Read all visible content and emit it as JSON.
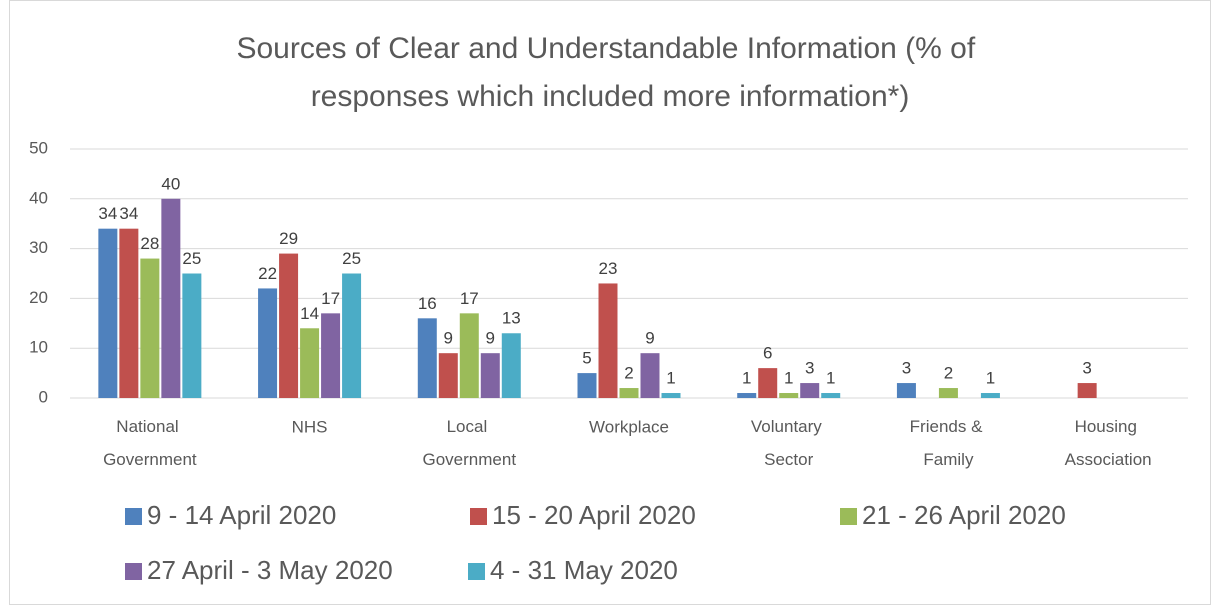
{
  "chart_data": {
    "type": "bar",
    "title": "Sources of Clear and Understandable Information (% of responses which included more information*)",
    "categories": [
      "National Government",
      "NHS",
      "Local Government",
      "Workplace",
      "Voluntary Sector",
      "Friends & Family",
      "Housing Association"
    ],
    "series": [
      {
        "name": "9 - 14 April 2020",
        "color": "#4f81bd",
        "values": [
          34,
          22,
          16,
          5,
          1,
          3,
          null
        ]
      },
      {
        "name": "15 - 20 April 2020",
        "color": "#c0504d",
        "values": [
          34,
          29,
          9,
          23,
          6,
          null,
          3
        ]
      },
      {
        "name": "21 - 26 April 2020",
        "color": "#9bbb59",
        "values": [
          28,
          14,
          17,
          2,
          1,
          2,
          null
        ]
      },
      {
        "name": "27 April - 3 May 2020",
        "color": "#8064a2",
        "values": [
          40,
          17,
          9,
          9,
          3,
          null,
          null
        ]
      },
      {
        "name": "4 - 31 May 2020",
        "color": "#4bacc6",
        "values": [
          25,
          25,
          13,
          1,
          1,
          1,
          null
        ]
      }
    ],
    "ylim": [
      0,
      50
    ],
    "yticks": [
      0,
      10,
      20,
      30,
      40,
      50
    ],
    "grid": true,
    "legend": "bottom"
  }
}
